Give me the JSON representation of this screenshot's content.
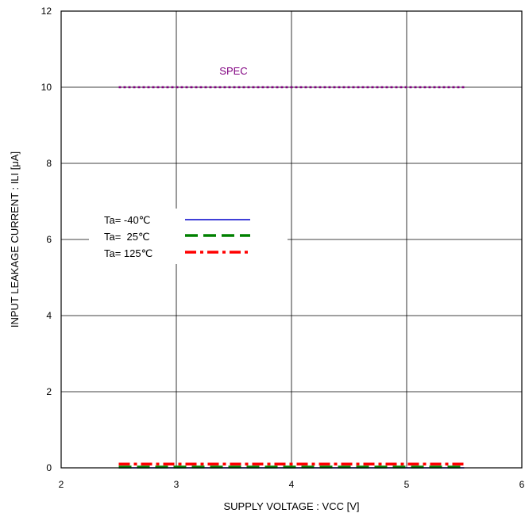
{
  "chart_data": {
    "type": "line",
    "xlabel": "SUPPLY VOLTAGE : VCC [V]",
    "ylabel": "INPUT LEAKAGE CURRENT : ILI [μA]",
    "xlim": [
      2,
      6
    ],
    "ylim": [
      0,
      12
    ],
    "xticks": [
      "2",
      "3",
      "4",
      "5",
      "6"
    ],
    "yticks": [
      "0",
      "2",
      "4",
      "6",
      "8",
      "10",
      "12"
    ],
    "grid": true,
    "legend_placement": "center-left",
    "series": [
      {
        "name": "Ta= -40℃",
        "x": [
          2.5,
          5.5
        ],
        "values": [
          0,
          0
        ],
        "color": "#0000cc",
        "style": "solid"
      },
      {
        "name": "Ta=  25℃",
        "x": [
          2.5,
          5.5
        ],
        "values": [
          0.02,
          0.02
        ],
        "color": "#008000",
        "style": "dashed"
      },
      {
        "name": "Ta= 125℃",
        "x": [
          2.5,
          5.5
        ],
        "values": [
          0.1,
          0.1
        ],
        "color": "#ff0000",
        "style": "dashdot"
      }
    ],
    "annotations": [
      {
        "text": "SPEC",
        "x": 2.5,
        "x_end": 5.5,
        "y": 10,
        "color": "#800080",
        "style": "dotted"
      }
    ]
  }
}
